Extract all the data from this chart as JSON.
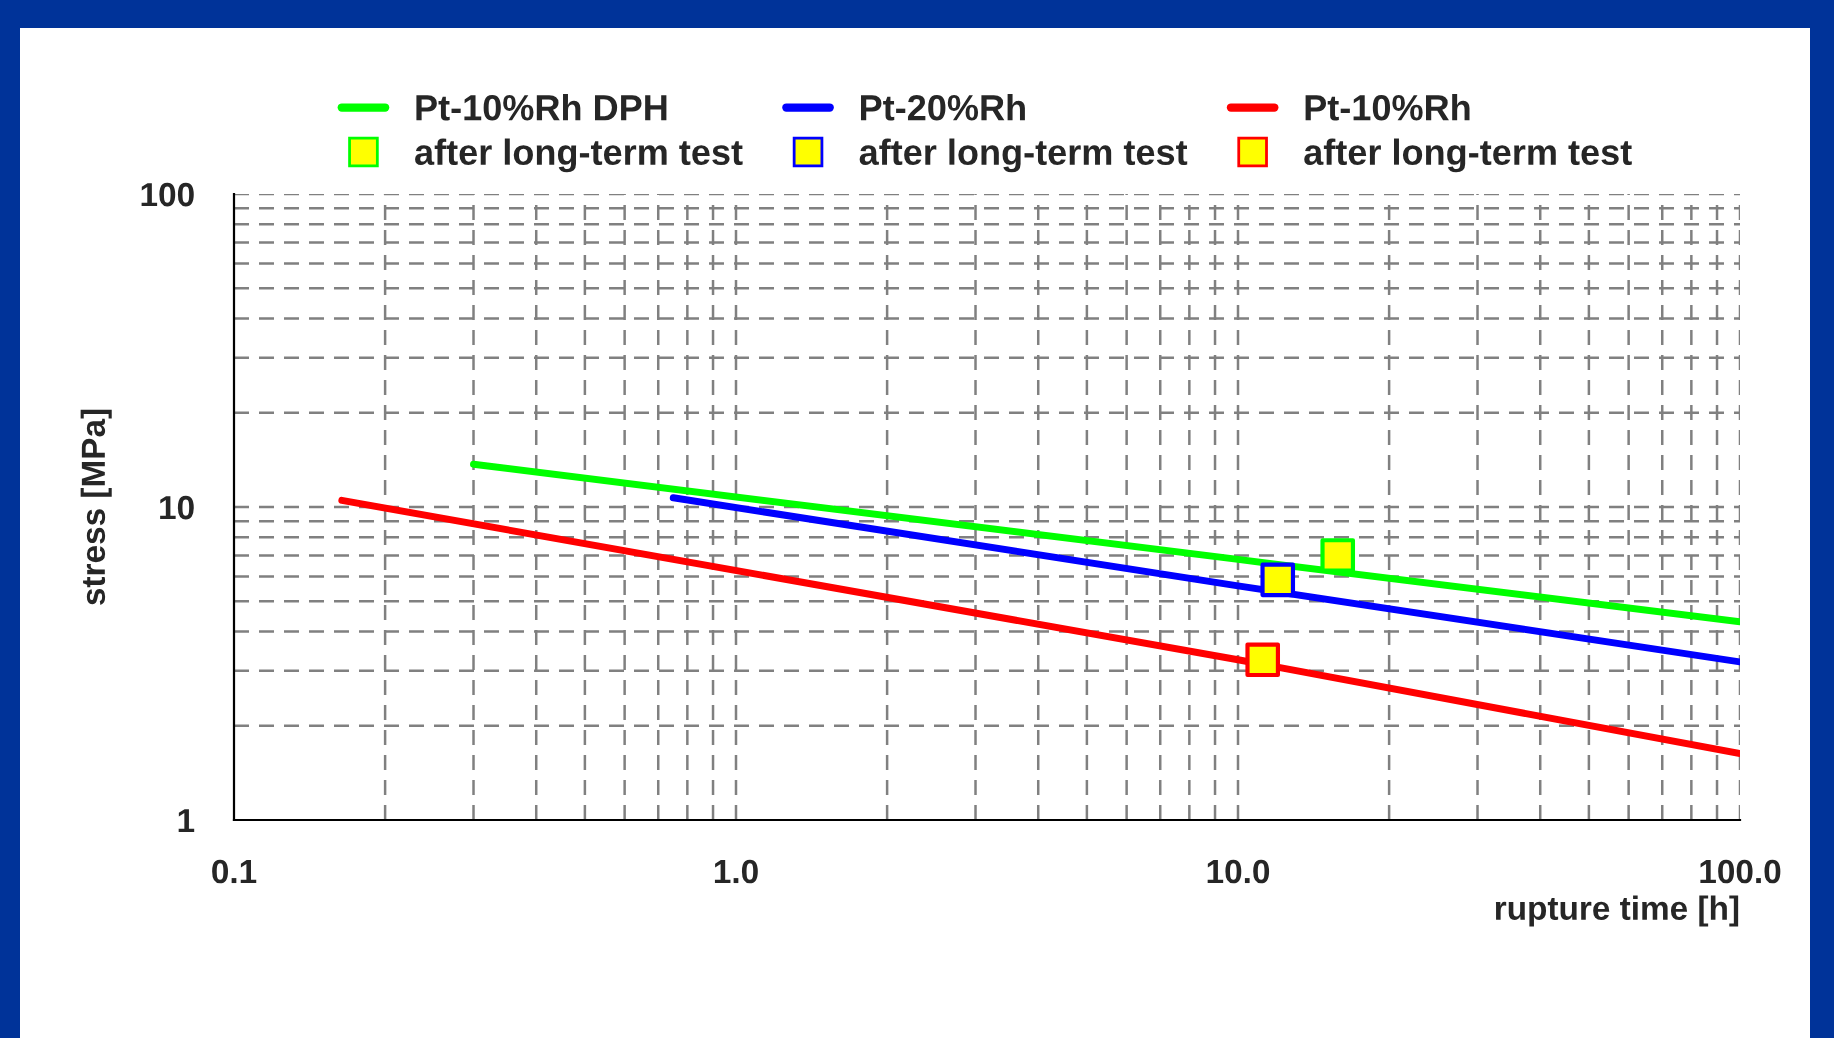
{
  "chart_data": {
    "type": "line",
    "xlabel": "rupture time [h]",
    "ylabel": "stress [MPa]",
    "log": "xy",
    "grid": true,
    "legend": "top",
    "marker": "none",
    "line_style": "solid",
    "xlim": [
      0.1,
      100
    ],
    "ylim": [
      1,
      100
    ],
    "xticks": [
      {
        "value": 0.1,
        "label": "0.1"
      },
      {
        "value": 1,
        "label": "1.0"
      },
      {
        "value": 10,
        "label": "10.0"
      },
      {
        "value": 100,
        "label": "100.0"
      }
    ],
    "yticks": [
      1,
      10,
      100
    ],
    "series": [
      {
        "name": "Pt-10%Rh DPH",
        "color": "#00ff00",
        "x": [
          0.3,
          10,
          100
        ],
        "values": [
          13.7,
          6.8,
          4.3
        ]
      },
      {
        "name": "after long-term test",
        "type": "scatter",
        "marker": "square",
        "color": "#00ff00",
        "x": [
          15.8
        ],
        "values": [
          7.0
        ]
      },
      {
        "name": "Pt-20%Rh",
        "color": "#0000ff",
        "x": [
          0.75,
          10,
          100
        ],
        "values": [
          10.7,
          5.6,
          3.2
        ]
      },
      {
        "name": "after long-term test",
        "type": "scatter",
        "marker": "square",
        "color": "#0000ff",
        "x": [
          12.0
        ],
        "values": [
          5.85
        ]
      },
      {
        "name": "Pt-10%Rh",
        "color": "#ff0000",
        "x": [
          0.164,
          10,
          100
        ],
        "values": [
          10.5,
          3.25,
          1.63
        ]
      },
      {
        "name": "after long-term test",
        "type": "scatter",
        "marker": "square",
        "color": "#ff0000",
        "x": [
          11.2
        ],
        "values": [
          3.25
        ]
      }
    ]
  }
}
